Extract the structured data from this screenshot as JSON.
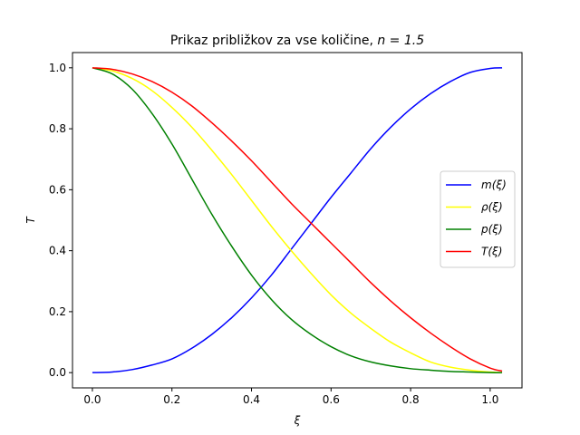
{
  "chart_data": {
    "type": "line",
    "title": "Prikaz približkov za vse količine, n = 1.5",
    "title_main": "Prikaz približkov za vse količine,",
    "title_math": "n = 1.5",
    "xlabel": "ξ",
    "ylabel": "T",
    "xlim": [
      -0.05,
      1.08
    ],
    "ylim": [
      -0.05,
      1.05
    ],
    "xticks": [
      0.0,
      0.2,
      0.4,
      0.6,
      0.8,
      1.0
    ],
    "xtick_labels": [
      "0.0",
      "0.2",
      "0.4",
      "0.6",
      "0.8",
      "1.0"
    ],
    "yticks": [
      0.0,
      0.2,
      0.4,
      0.6,
      0.8,
      1.0
    ],
    "ytick_labels": [
      "0.0",
      "0.2",
      "0.4",
      "0.6",
      "0.8",
      "1.0"
    ],
    "grid": false,
    "legend_position": "center-right",
    "x": [
      0.0,
      0.05,
      0.1,
      0.15,
      0.2,
      0.25,
      0.3,
      0.35,
      0.4,
      0.45,
      0.5,
      0.55,
      0.6,
      0.65,
      0.7,
      0.75,
      0.8,
      0.85,
      0.9,
      0.95,
      1.0,
      1.03
    ],
    "series": [
      {
        "name": "m(ξ)",
        "color": "#0000ff",
        "values": [
          0.0,
          0.002,
          0.01,
          0.025,
          0.045,
          0.08,
          0.125,
          0.18,
          0.245,
          0.32,
          0.405,
          0.49,
          0.575,
          0.655,
          0.735,
          0.805,
          0.865,
          0.915,
          0.955,
          0.985,
          0.998,
          1.0
        ]
      },
      {
        "name": "ρ(ξ)",
        "color": "#ffff00",
        "values": [
          1.0,
          0.99,
          0.965,
          0.925,
          0.87,
          0.805,
          0.73,
          0.65,
          0.565,
          0.48,
          0.4,
          0.325,
          0.255,
          0.195,
          0.145,
          0.1,
          0.065,
          0.035,
          0.018,
          0.008,
          0.002,
          0.0
        ]
      },
      {
        "name": "p(ξ)",
        "color": "#008000",
        "values": [
          1.0,
          0.98,
          0.93,
          0.85,
          0.75,
          0.635,
          0.52,
          0.415,
          0.32,
          0.24,
          0.175,
          0.125,
          0.085,
          0.055,
          0.035,
          0.022,
          0.013,
          0.008,
          0.004,
          0.002,
          0.0,
          0.0
        ]
      },
      {
        "name": "T(ξ)",
        "color": "#ff0000",
        "values": [
          1.0,
          0.995,
          0.98,
          0.955,
          0.92,
          0.875,
          0.82,
          0.76,
          0.695,
          0.625,
          0.555,
          0.49,
          0.425,
          0.36,
          0.295,
          0.235,
          0.18,
          0.13,
          0.085,
          0.045,
          0.015,
          0.005
        ]
      }
    ]
  }
}
